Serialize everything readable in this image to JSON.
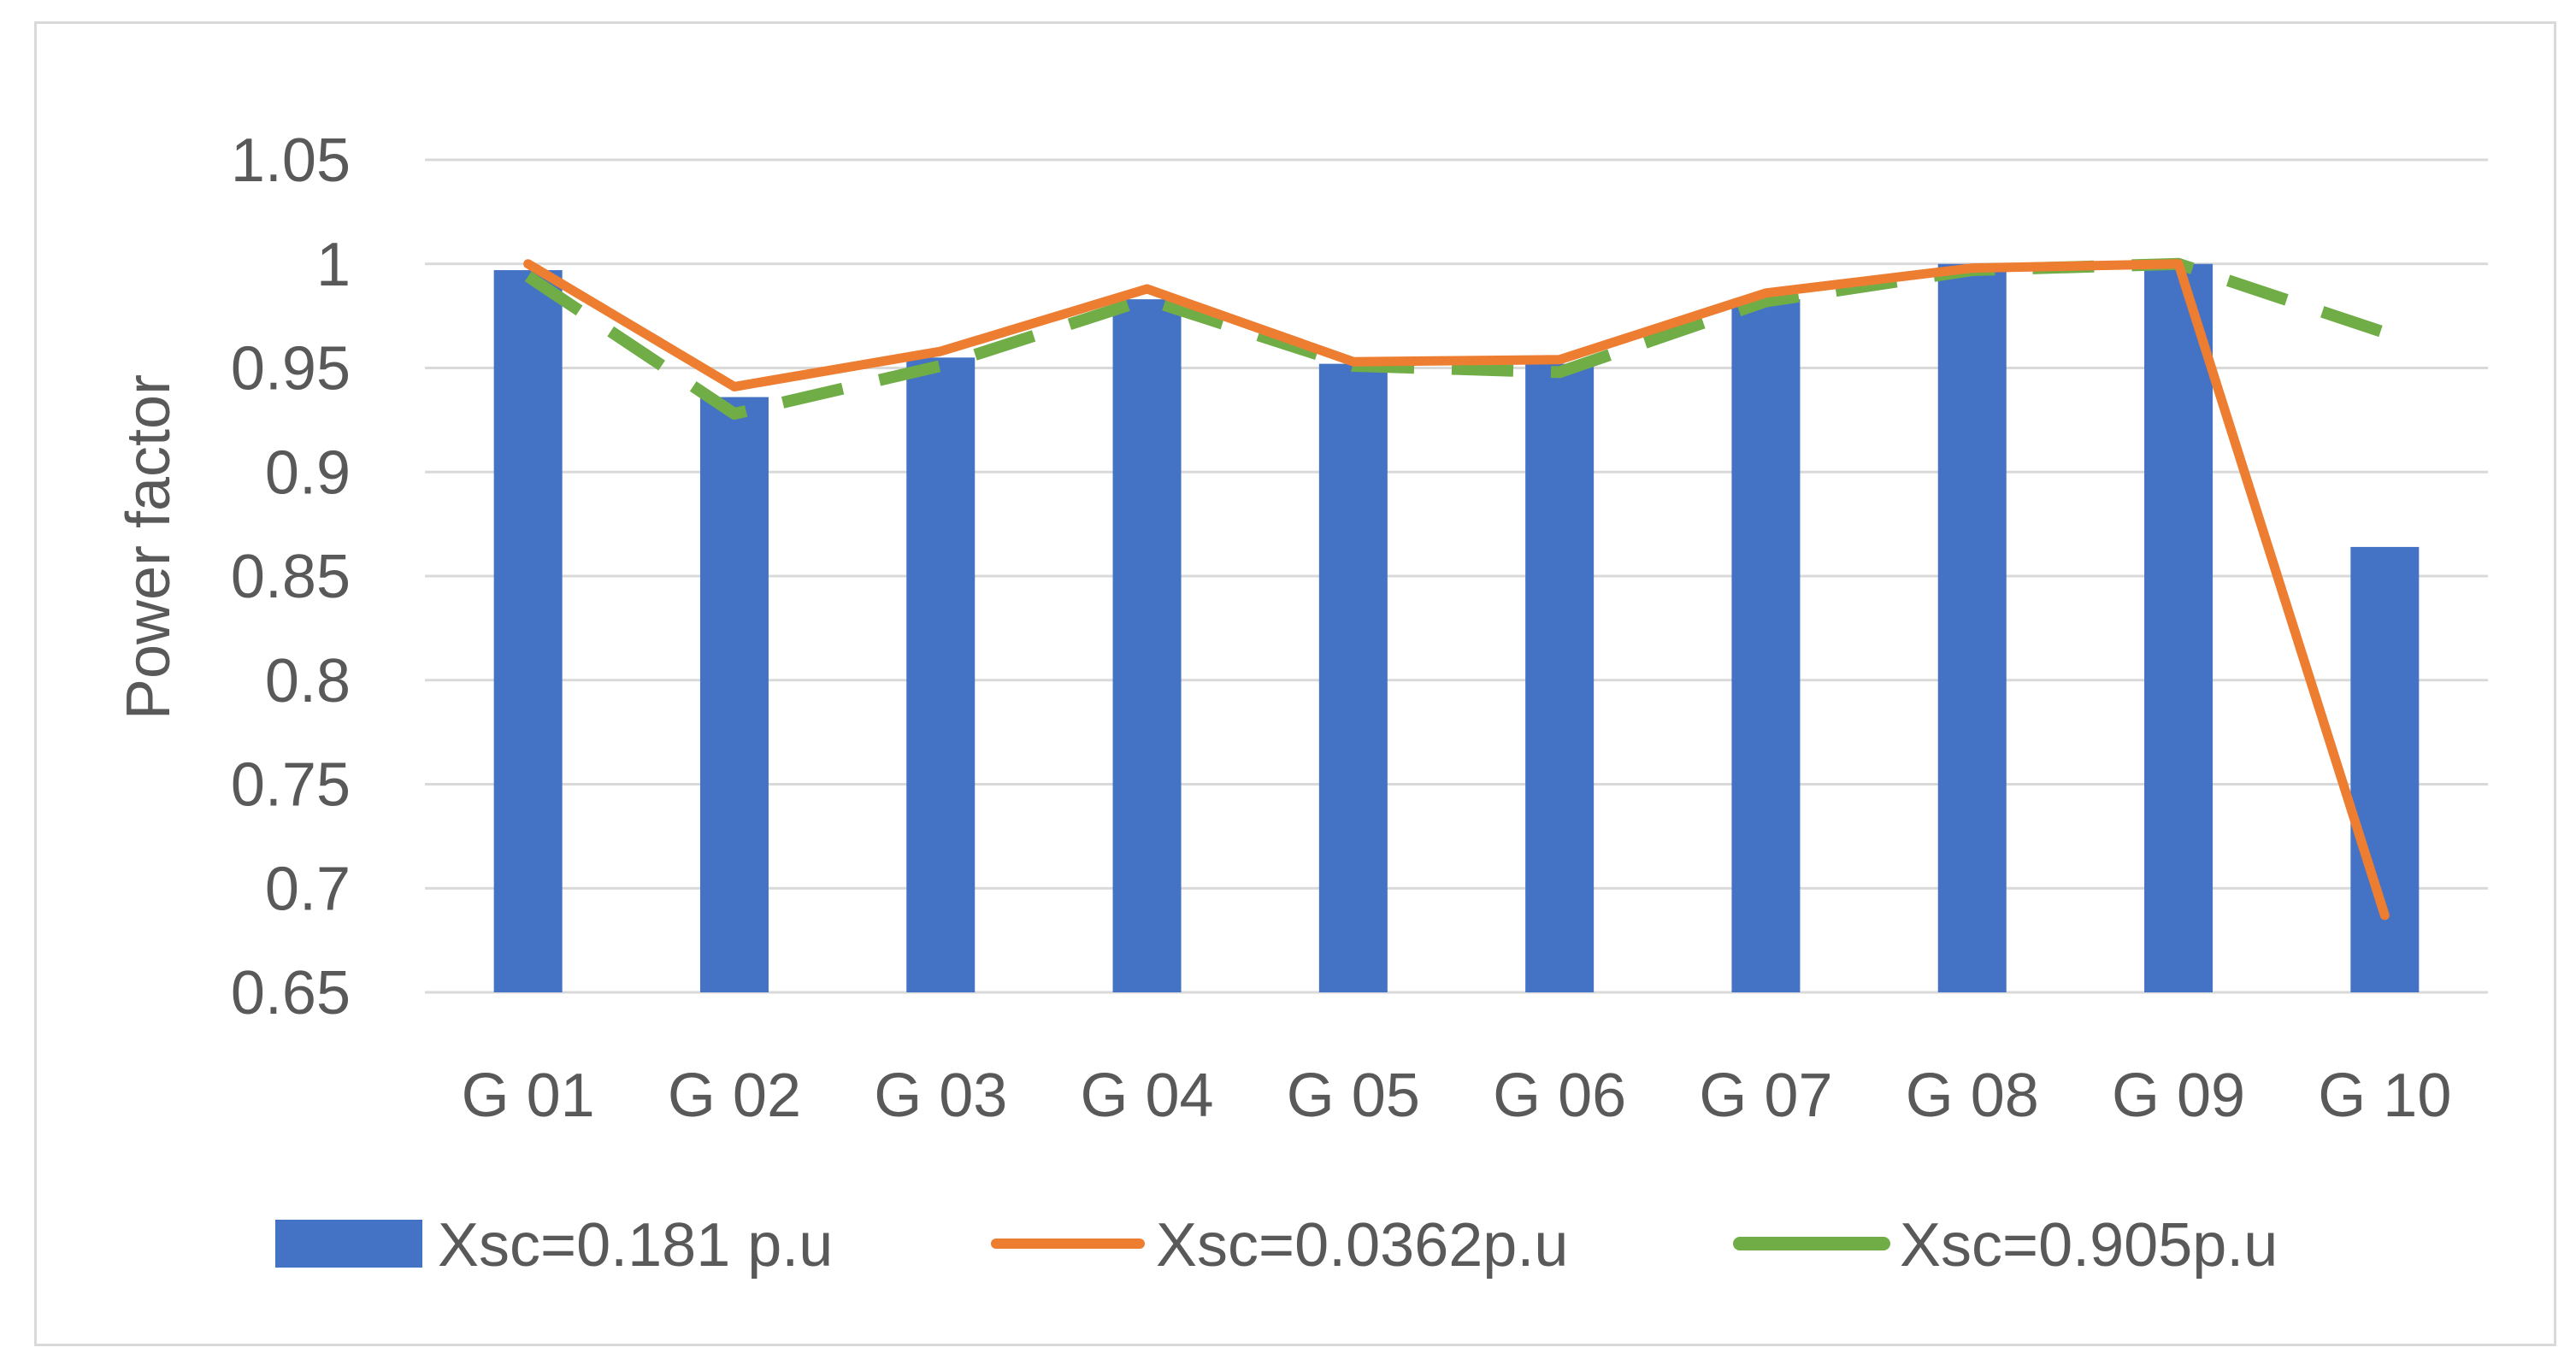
{
  "chart_data": {
    "type": "bar",
    "title": "",
    "xlabel": "",
    "ylabel": "Power factor",
    "categories": [
      "G 01",
      "G 02",
      "G 03",
      "G 04",
      "G 05",
      "G 06",
      "G 07",
      "G 08",
      "G 09",
      "G 10"
    ],
    "ylim": [
      0.65,
      1.05
    ],
    "yticks": [
      "0.65",
      "0.7",
      "0.75",
      "0.8",
      "0.85",
      "0.9",
      "0.95",
      "1",
      "1.05"
    ],
    "grid": true,
    "legend_position": "bottom",
    "series": [
      {
        "name": "Xsc=0.181 p.u",
        "type": "bar",
        "color": "#4472C4",
        "values": [
          0.997,
          0.936,
          0.955,
          0.983,
          0.952,
          0.952,
          0.983,
          1.0,
          1.0,
          0.864
        ]
      },
      {
        "name": "Xsc=0.0362p.u",
        "type": "line",
        "style": "solid",
        "color": "#ED7D31",
        "values": [
          1.0,
          0.941,
          0.958,
          0.988,
          0.953,
          0.954,
          0.986,
          0.998,
          1.0,
          0.687
        ]
      },
      {
        "name": "Xsc=0.905p.u",
        "type": "line",
        "style": "dashed",
        "color": "#70AD47",
        "values": [
          0.994,
          0.928,
          0.951,
          0.983,
          0.951,
          0.948,
          0.982,
          0.997,
          1.0,
          0.967
        ]
      }
    ]
  }
}
